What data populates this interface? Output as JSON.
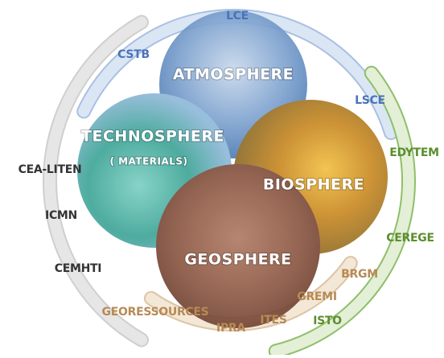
{
  "spheres": [
    {
      "label": "ATMOSPHERE"
    },
    {
      "label": "TECHNOSPHERE",
      "sublabel": "( MATERIALS)"
    },
    {
      "label": "BIOSPHERE"
    },
    {
      "label": "GEOSPHERE"
    }
  ],
  "labels": [
    "LCE",
    "CSTB",
    "LSCE",
    "EDYTEM",
    "CEREGE",
    "ISTO",
    "BRGM",
    "GREMI",
    "ITES",
    "IPRA",
    "GEORESSOURCES",
    "CEMHTI",
    "ICMN",
    "CEA-LITEN"
  ]
}
